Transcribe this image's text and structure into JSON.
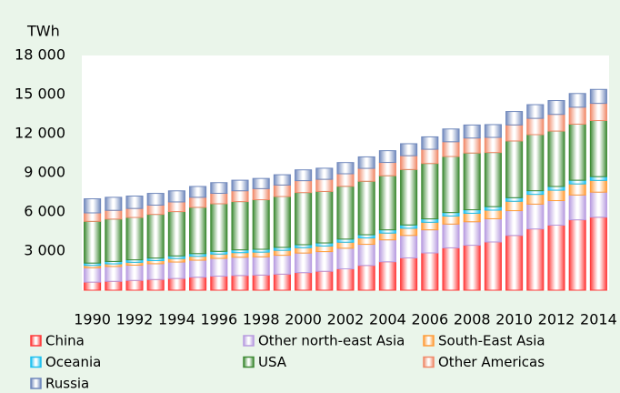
{
  "chart_data": {
    "type": "stacked_bar",
    "y_label": "TWh",
    "categories": [
      "1990",
      null,
      "1992",
      null,
      "1994",
      null,
      "1996",
      null,
      "1998",
      null,
      "2000",
      null,
      "2002",
      null,
      "2004",
      null,
      "2006",
      null,
      "2008",
      null,
      "2010",
      null,
      "2012",
      null,
      "2014"
    ],
    "series": [
      {
        "name": "China",
        "color": "#ff3b3b",
        "values": [
          620,
          680,
          750,
          820,
          900,
          1000,
          1080,
          1130,
          1160,
          1230,
          1350,
          1450,
          1640,
          1900,
          2180,
          2480,
          2860,
          3250,
          3450,
          3700,
          4200,
          4700,
          4990,
          5400,
          5600
        ]
      },
      {
        "name": "Other north-east Asia",
        "color": "#b89ce0",
        "values": [
          1100,
          1140,
          1170,
          1210,
          1260,
          1300,
          1360,
          1400,
          1400,
          1450,
          1500,
          1510,
          1580,
          1620,
          1680,
          1720,
          1770,
          1820,
          1800,
          1780,
          1900,
          1900,
          1880,
          1900,
          1920
        ]
      },
      {
        "name": "South-East Asia",
        "color": "#ff9d3a",
        "values": [
          180,
          200,
          220,
          240,
          270,
          300,
          330,
          350,
          360,
          380,
          410,
          430,
          460,
          490,
          520,
          550,
          580,
          620,
          650,
          660,
          720,
          750,
          800,
          850,
          900
        ]
      },
      {
        "name": "Oceania",
        "color": "#1cc0f0",
        "values": [
          180,
          185,
          190,
          195,
          200,
          205,
          210,
          215,
          220,
          225,
          230,
          235,
          240,
          245,
          250,
          255,
          260,
          265,
          270,
          270,
          275,
          280,
          285,
          285,
          290
        ]
      },
      {
        "name": "USA",
        "color": "#3e8a34",
        "values": [
          3200,
          3250,
          3250,
          3350,
          3400,
          3550,
          3650,
          3700,
          3800,
          3900,
          4000,
          3950,
          4050,
          4100,
          4150,
          4250,
          4250,
          4300,
          4350,
          4150,
          4350,
          4300,
          4250,
          4300,
          4300
        ]
      },
      {
        "name": "Other Americas",
        "color": "#f08a6a",
        "values": [
          650,
          670,
          690,
          710,
          740,
          770,
          800,
          830,
          850,
          880,
          910,
          930,
          960,
          990,
          1020,
          1060,
          1090,
          1130,
          1150,
          1160,
          1230,
          1250,
          1280,
          1300,
          1320
        ]
      },
      {
        "name": "Russia",
        "color": "#7088bc",
        "values": [
          1080,
          1000,
          950,
          900,
          850,
          830,
          820,
          810,
          780,
          790,
          830,
          850,
          860,
          880,
          900,
          920,
          950,
          980,
          1000,
          980,
          1030,
          1050,
          1060,
          1050,
          1070
        ]
      }
    ],
    "ylim": [
      0,
      18000
    ],
    "yticks": [
      {
        "value": 3000,
        "label": "3 000"
      },
      {
        "value": 6000,
        "label": "6 000"
      },
      {
        "value": 9000,
        "label": "9 000"
      },
      {
        "value": 12000,
        "label": "12 000"
      },
      {
        "value": 15000,
        "label": "15 000"
      },
      {
        "value": 18000,
        "label": "18 000"
      }
    ]
  }
}
